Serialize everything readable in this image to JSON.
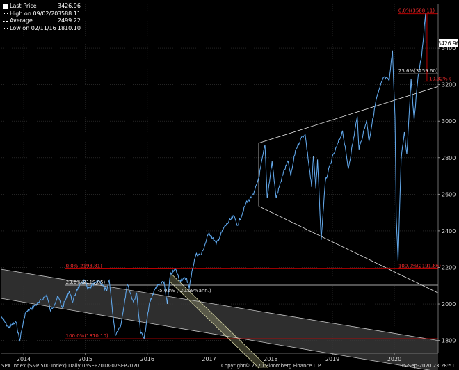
{
  "chart_data": {
    "type": "line",
    "ylim": [
      1730,
      3640
    ],
    "xlim": [
      "2013-10-20",
      "2020-11-15"
    ],
    "y_ticks": [
      1800,
      2000,
      2200,
      2400,
      2600,
      2800,
      3000,
      3200,
      3400
    ],
    "x_ticks": [
      {
        "label": "2014",
        "x": "2014-03-01"
      },
      {
        "label": "2015",
        "x": "2015-03-01"
      },
      {
        "label": "2016",
        "x": "2016-03-01"
      },
      {
        "label": "2017",
        "x": "2017-03-01"
      },
      {
        "label": "2018",
        "x": "2018-03-01"
      },
      {
        "label": "2019",
        "x": "2019-03-01"
      },
      {
        "label": "2020",
        "x": "2020-03-01"
      }
    ],
    "legend": [
      {
        "label": "Last Price",
        "value": "3426.96",
        "color": "#ffffff"
      },
      {
        "label": "High on 09/02/20",
        "value": "3588.11",
        "color": "#ffffff"
      },
      {
        "label": "Average",
        "value": "2499.22",
        "color": "#ffffff"
      },
      {
        "label": "Low on 02/11/16",
        "value": "1810.10",
        "color": "#ffffff"
      }
    ],
    "last_price_label": "3426.96",
    "series": [
      {
        "color": "#3a8fe0",
        "points": [
          [
            "2013-10-20",
            1930
          ],
          [
            "2013-12-01",
            1870
          ],
          [
            "2014-01-15",
            1900
          ],
          [
            "2014-02-05",
            1800
          ],
          [
            "2014-03-10",
            1950
          ],
          [
            "2014-04-15",
            1975
          ],
          [
            "2014-06-01",
            2010
          ],
          [
            "2014-07-15",
            2050
          ],
          [
            "2014-08-07",
            1960
          ],
          [
            "2014-09-20",
            2040
          ],
          [
            "2014-10-15",
            1980
          ],
          [
            "2014-11-25",
            2070
          ],
          [
            "2014-12-16",
            2010
          ],
          [
            "2015-01-10",
            2080
          ],
          [
            "2015-02-25",
            2130
          ],
          [
            "2015-03-15",
            2080
          ],
          [
            "2015-05-20",
            2130
          ],
          [
            "2015-07-05",
            2070
          ],
          [
            "2015-07-20",
            2130
          ],
          [
            "2015-08-24",
            1830
          ],
          [
            "2015-09-28",
            1890
          ],
          [
            "2015-11-03",
            2110
          ],
          [
            "2015-12-10",
            2010
          ],
          [
            "2015-12-29",
            2060
          ],
          [
            "2016-01-20",
            1850
          ],
          [
            "2016-02-11",
            1810
          ],
          [
            "2016-03-15",
            2010
          ],
          [
            "2016-04-20",
            2090
          ],
          [
            "2016-06-08",
            2120
          ],
          [
            "2016-06-27",
            2000
          ],
          [
            "2016-07-15",
            2160
          ],
          [
            "2016-08-15",
            2190
          ],
          [
            "2016-09-09",
            2130
          ],
          [
            "2016-10-20",
            2140
          ],
          [
            "2016-11-04",
            2085
          ],
          [
            "2016-11-20",
            2180
          ],
          [
            "2016-12-13",
            2270
          ],
          [
            "2017-01-15",
            2270
          ],
          [
            "2017-03-01",
            2390
          ],
          [
            "2017-04-13",
            2330
          ],
          [
            "2017-05-30",
            2420
          ],
          [
            "2017-07-25",
            2480
          ],
          [
            "2017-08-18",
            2430
          ],
          [
            "2017-10-05",
            2550
          ],
          [
            "2017-11-20",
            2600
          ],
          [
            "2017-12-20",
            2690
          ],
          [
            "2018-01-26",
            2870
          ],
          [
            "2018-02-08",
            2580
          ],
          [
            "2018-03-09",
            2780
          ],
          [
            "2018-04-02",
            2580
          ],
          [
            "2018-05-15",
            2720
          ],
          [
            "2018-06-12",
            2780
          ],
          [
            "2018-06-28",
            2700
          ],
          [
            "2018-07-25",
            2840
          ],
          [
            "2018-08-29",
            2910
          ],
          [
            "2018-09-20",
            2930
          ],
          [
            "2018-10-29",
            2640
          ],
          [
            "2018-11-08",
            2810
          ],
          [
            "2018-11-23",
            2630
          ],
          [
            "2018-12-03",
            2790
          ],
          [
            "2018-12-24",
            2350
          ],
          [
            "2019-01-18",
            2670
          ],
          [
            "2019-02-25",
            2790
          ],
          [
            "2019-04-30",
            2945
          ],
          [
            "2019-06-03",
            2740
          ],
          [
            "2019-07-26",
            3025
          ],
          [
            "2019-08-05",
            2845
          ],
          [
            "2019-09-19",
            3005
          ],
          [
            "2019-10-03",
            2890
          ],
          [
            "2019-11-15",
            3120
          ],
          [
            "2019-12-27",
            3240
          ],
          [
            "2020-01-31",
            3225
          ],
          [
            "2020-02-19",
            3386
          ],
          [
            "2020-03-05",
            3020
          ],
          [
            "2020-03-12",
            2480
          ],
          [
            "2020-03-23",
            2237
          ],
          [
            "2020-04-10",
            2790
          ],
          [
            "2020-04-29",
            2940
          ],
          [
            "2020-05-14",
            2820
          ],
          [
            "2020-06-08",
            3230
          ],
          [
            "2020-06-26",
            3010
          ],
          [
            "2020-07-20",
            3250
          ],
          [
            "2020-08-10",
            3360
          ],
          [
            "2020-09-02",
            3588
          ],
          [
            "2020-09-04",
            3426.96
          ]
        ]
      }
    ],
    "annotations": {
      "channels": [
        {
          "from": [
            "2013-10-20",
            2190
          ],
          "to": [
            "2020-11-15",
            1800
          ],
          "color": "#c8c8c8"
        },
        {
          "from": [
            "2013-10-20",
            2030
          ],
          "to": [
            "2020-11-15",
            1630
          ],
          "color": "#c8c8c8"
        },
        {
          "from": [
            "2017-12-20",
            2880
          ],
          "to": [
            "2020-11-15",
            3190
          ],
          "color": "#e8e8e8"
        },
        {
          "from": [
            "2017-12-20",
            2535
          ],
          "to": [
            "2020-11-15",
            2060
          ],
          "color": "#e8e8e8"
        },
        {
          "from": [
            "2016-07-15",
            2170
          ],
          "to": [
            "2018-02-15",
            1650
          ],
          "color": "#d8d8a8"
        },
        {
          "from": [
            "2016-07-15",
            2120
          ],
          "to": [
            "2017-12-20",
            1650
          ],
          "color": "#d8d8a8"
        }
      ],
      "vertical_segments": [
        {
          "x": "2017-12-20",
          "y1": 2535,
          "y2": 2880,
          "color": "#e8e8e8"
        }
      ],
      "shaded_band": {
        "top": [
          [
            "2013-10-20",
            2190
          ],
          [
            "2020-11-15",
            1800
          ]
        ],
        "bottom": [
          [
            "2013-10-20",
            2030
          ],
          [
            "2020-11-15",
            1630
          ]
        ],
        "color": "#ffffff"
      },
      "hlines": [
        {
          "y": 2192,
          "from": "2014-11-01",
          "to": "2016-08-15",
          "color": "#d40000"
        },
        {
          "y": 2192,
          "from": "2020-03-23",
          "to": "2020-11-15",
          "color": "#d40000"
        },
        {
          "y": 2192,
          "from": "2016-08-15",
          "to": "2020-03-23",
          "color": "#b00000"
        },
        {
          "y": 2103,
          "from": "2014-11-01",
          "to": "2020-11-15",
          "color": "#e0e0e0"
        },
        {
          "y": 1810,
          "from": "2014-11-01",
          "to": "2020-11-15",
          "color": "#d40000"
        },
        {
          "y": 3588,
          "from": "2020-03-23",
          "to": "2020-11-15",
          "color": "#d40000"
        },
        {
          "y": 3259,
          "from": "2020-03-23",
          "to": "2020-11-15",
          "color": "#e0e0e0"
        }
      ],
      "drawdown": {
        "x": "2020-09-10",
        "from": 3588,
        "to": 3219,
        "color": "#d40000"
      },
      "labels": [
        {
          "text": "0.0%(3588.11)",
          "x": "2020-03-25",
          "y": 3588,
          "color": "#ff3030"
        },
        {
          "text": "23.6%(3259.60)",
          "x": "2020-03-25",
          "y": 3259,
          "color": "#e0e0e0"
        },
        {
          "text": "-10.32% (-",
          "x": "2020-09-12",
          "y": 3215,
          "color": "#ff3030"
        },
        {
          "text": "100.0%(2191.86)",
          "x": "2020-03-25",
          "y": 2192,
          "color": "#ff3030"
        },
        {
          "text": "0.0%(2193.81)",
          "x": "2014-11-05",
          "y": 2192,
          "color": "#ff3030"
        },
        {
          "text": "23.6%(2119.85)",
          "x": "2014-11-05",
          "y": 2103,
          "color": "#e0e0e0"
        },
        {
          "text": "-5.02% (-20.69%ann.)",
          "x": "2016-05-01",
          "y": 2058,
          "color": "#e0e0e0"
        },
        {
          "text": "100.0%(1810.10)",
          "x": "2014-11-05",
          "y": 1810,
          "color": "#ff3030"
        }
      ]
    }
  },
  "footer": {
    "left": "SPX Index (S&P 500 Index)  Daily 06SEP2018-07SEP2020",
    "center": "Copyright© 2020 Bloomberg Finance L.P.",
    "right": "05-Sep-2020 23:28:51"
  }
}
